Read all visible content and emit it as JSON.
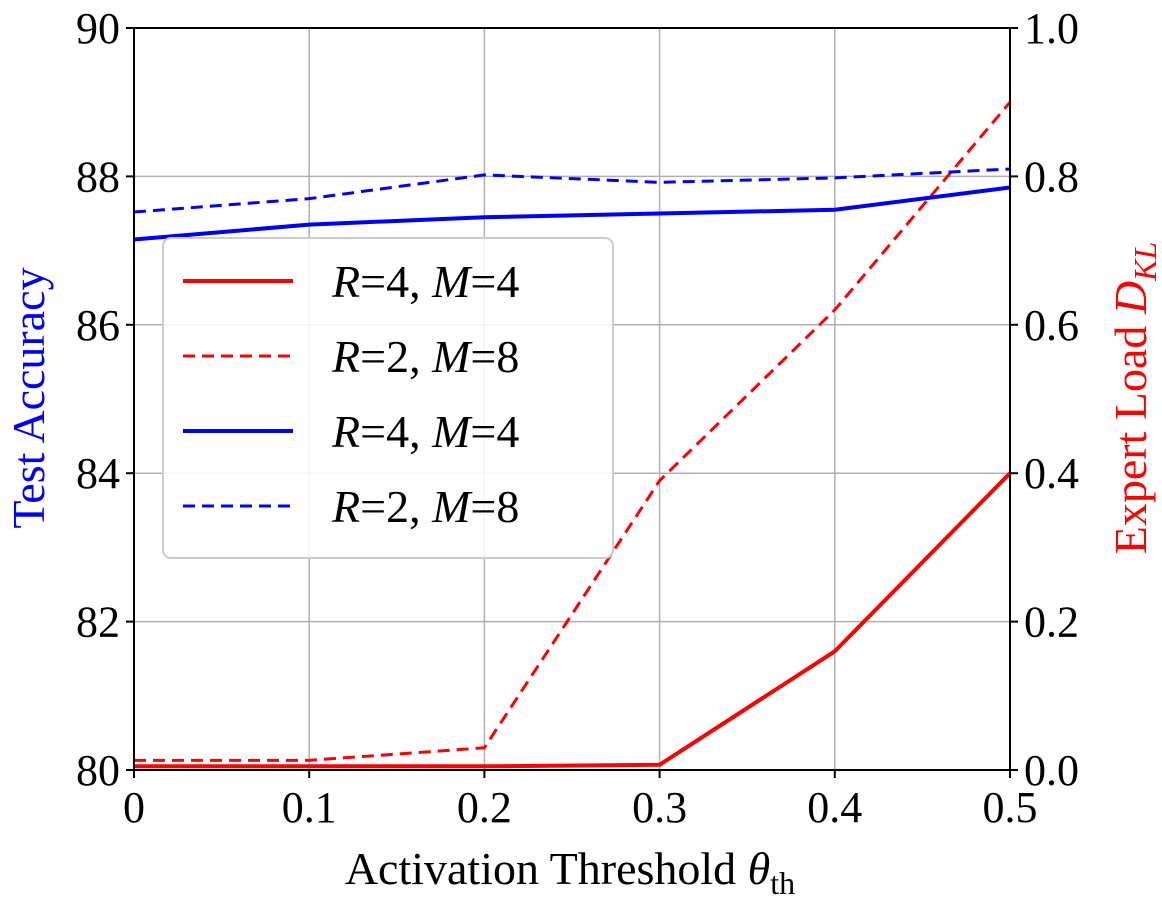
{
  "chart_data": {
    "type": "line",
    "x": [
      0,
      0.1,
      0.2,
      0.3,
      0.4,
      0.5
    ],
    "x_tick_labels": [
      "0",
      "0.1",
      "0.2",
      "0.3",
      "0.4",
      "0.5"
    ],
    "xlim": [
      0,
      0.5
    ],
    "xlabel": "Activation Threshold",
    "xlabel_symbol": "θ",
    "xlabel_subscript": "th",
    "left_axis": {
      "label": "Test Accuracy",
      "color": "#0000ff",
      "ylim": [
        80,
        90
      ],
      "tick_labels": [
        "80",
        "82",
        "84",
        "86",
        "88",
        "90"
      ],
      "ticks": [
        80,
        82,
        84,
        86,
        88,
        90
      ]
    },
    "right_axis": {
      "label": "Expert Load",
      "symbol": "D",
      "symbol_subscript": "KL",
      "color": "#ff0000",
      "ylim": [
        0,
        1.0
      ],
      "tick_labels": [
        "0.0",
        "0.2",
        "0.4",
        "0.6",
        "0.8",
        "1.0"
      ],
      "ticks": [
        0,
        0.2,
        0.4,
        0.6,
        0.8,
        1.0
      ]
    },
    "grid": true,
    "legend_position": "center-left",
    "series": [
      {
        "name": "R=4,M=4",
        "legend_R": "4",
        "legend_M": "4",
        "axis": "right",
        "color": "#ff0000",
        "dash": "solid",
        "values": [
          0.005,
          0.005,
          0.005,
          0.007,
          0.16,
          0.4
        ]
      },
      {
        "name": "R=2,M=8",
        "legend_R": "2",
        "legend_M": "8",
        "axis": "right",
        "color": "#ff0000",
        "dash": "dashed",
        "values": [
          0.013,
          0.013,
          0.03,
          0.39,
          0.62,
          0.9
        ]
      },
      {
        "name": "R=4,M=4",
        "legend_R": "4",
        "legend_M": "4",
        "axis": "left",
        "color": "#0000ff",
        "dash": "solid",
        "values": [
          87.15,
          87.35,
          87.45,
          87.5,
          87.55,
          87.85
        ]
      },
      {
        "name": "R=2,M=8",
        "legend_R": "2",
        "legend_M": "8",
        "axis": "left",
        "color": "#0000ff",
        "dash": "dashed",
        "values": [
          87.52,
          87.7,
          88.02,
          87.92,
          87.98,
          88.1
        ]
      }
    ]
  }
}
